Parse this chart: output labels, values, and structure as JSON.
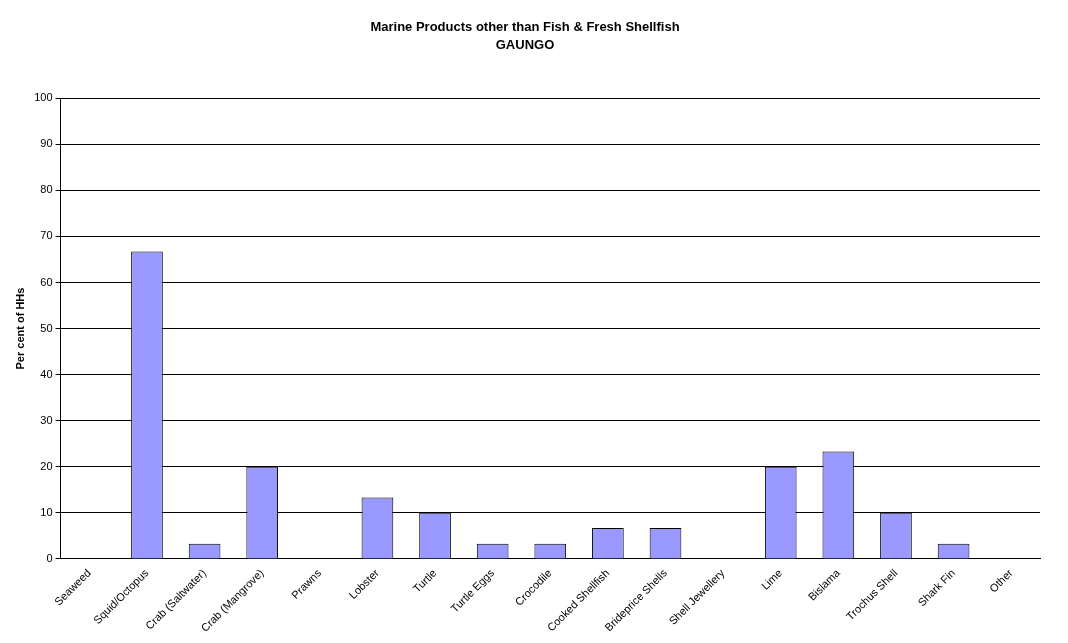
{
  "chart_data": {
    "type": "bar",
    "title": "Marine Products other than Fish & Fresh Shellfish",
    "subtitle": "GAUNGO",
    "ylabel": "Per cent of HHs",
    "categories": [
      "Seaweed",
      "Squid/Octopus",
      "Crab (Saltwater)",
      "Crab (Mangrove)",
      "Prawns",
      "Lobster",
      "Turtle",
      "Turtle Eggs",
      "Crocodile",
      "Cooked Shellfish",
      "Brideprice Shells",
      "Shell Jewellery",
      "Lime",
      "Bislama",
      "Trochus Shell",
      "Shark Fin",
      "Other"
    ],
    "values": [
      0,
      66.7,
      3.3,
      20,
      0,
      13.3,
      10,
      3.3,
      3.3,
      6.7,
      6.7,
      0,
      20,
      23.3,
      10,
      3.3,
      0
    ],
    "color": "#9999ff",
    "ylim": [
      0,
      100
    ],
    "yticks": [
      0,
      10,
      20,
      30,
      40,
      50,
      60,
      70,
      80,
      90,
      100
    ],
    "grid": "y",
    "legend": false
  }
}
